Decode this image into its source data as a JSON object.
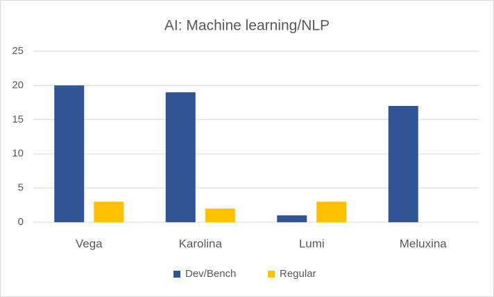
{
  "chart_data": {
    "type": "bar",
    "title": "AI: Machine learning/NLP",
    "categories": [
      "Vega",
      "Karolina",
      "Lumi",
      "Meluxina"
    ],
    "series": [
      {
        "name": "Dev/Bench",
        "color": "#2f5597",
        "values": [
          20,
          19,
          1,
          17
        ]
      },
      {
        "name": "Regular",
        "color": "#ffc000",
        "values": [
          3,
          2,
          3,
          0
        ]
      }
    ],
    "ylim": [
      0,
      25
    ],
    "yticks": [
      0,
      5,
      10,
      15,
      20,
      25
    ],
    "grid": true,
    "legend": "bottom"
  }
}
